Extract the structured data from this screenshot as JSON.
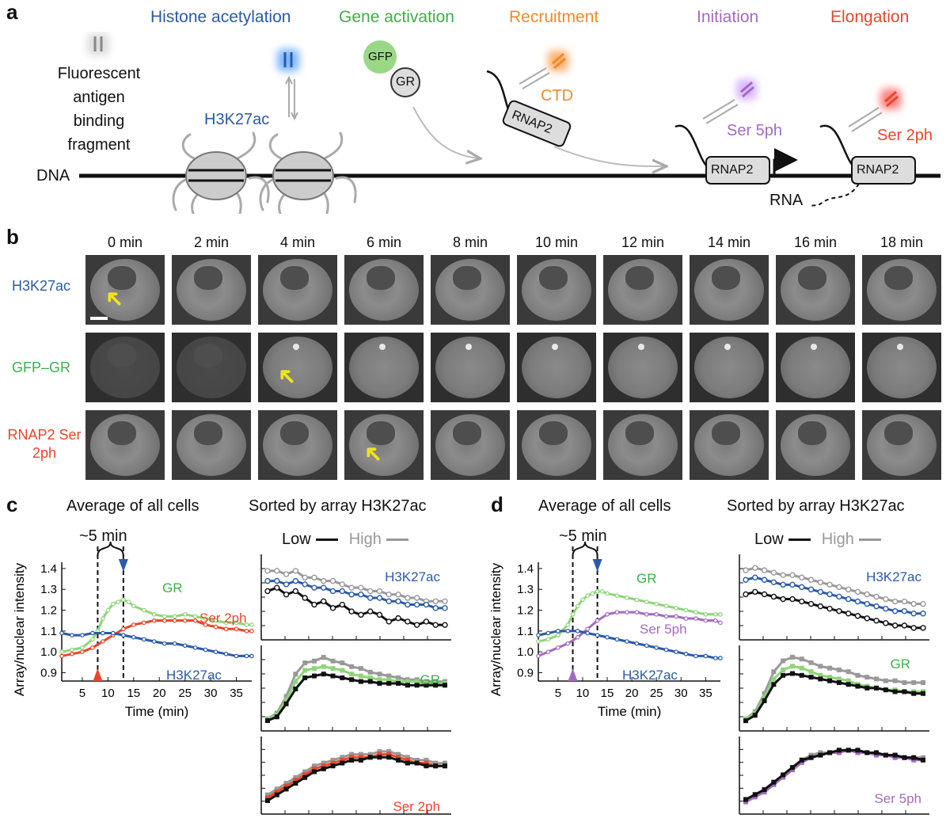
{
  "panel_a": {
    "letter": "a",
    "stages": [
      "Histone acetylation",
      "Gene activation",
      "Recruitment",
      "Initiation",
      "Elongation"
    ],
    "stage_colors": [
      "#2b5aa8",
      "#3dae4a",
      "#f08a2a",
      "#a26bc0",
      "#e8462a"
    ],
    "fab_label": [
      "Fluorescent",
      "antigen",
      "binding",
      "fragment"
    ],
    "h3k27ac": "H3K27ac",
    "gfp": "GFP",
    "gr": "GR",
    "ctd": "CTD",
    "rnap2": "RNAP2",
    "ser5": "Ser 5ph",
    "ser2": "Ser 2ph",
    "dna": "DNA",
    "rna": "RNA"
  },
  "panel_b": {
    "letter": "b",
    "times": [
      "0 min",
      "2 min",
      "4 min",
      "6 min",
      "8 min",
      "10 min",
      "12 min",
      "14 min",
      "16 min",
      "18 min"
    ],
    "rows": [
      {
        "label": "H3K27ac",
        "color": "#2b5aa8"
      },
      {
        "label": "GFP–GR",
        "color": "#3dae4a"
      },
      {
        "label": "RNAP2 Ser 2ph",
        "color": "#e8462a"
      }
    ]
  },
  "panel_c": {
    "letter": "c",
    "title_left": "Average of all cells",
    "title_right": "Sorted by array H3K27ac",
    "delay_label": "~5 min",
    "legend_low": "Low",
    "legend_high": "High"
  },
  "panel_d": {
    "letter": "d",
    "title_left": "Average of all cells",
    "title_right": "Sorted by array H3K27ac",
    "delay_label": "~5 min",
    "legend_low": "Low",
    "legend_high": "High"
  },
  "chart_data": [
    {
      "id": "c-average",
      "type": "line",
      "xlabel": "Time (min)",
      "ylabel": "Array/nuclear intensity",
      "xticks": [
        5,
        10,
        15,
        20,
        25,
        30,
        35
      ],
      "yticks": [
        0.9,
        1.0,
        1.1,
        1.2,
        1.3,
        1.4
      ],
      "xlim": [
        1,
        38
      ],
      "ylim": [
        0.86,
        1.43
      ],
      "markers": {
        "first_response": 8,
        "peak": 13
      },
      "series": [
        {
          "name": "GR",
          "color": "#8fd47a",
          "x": [
            1,
            3,
            5,
            7,
            8,
            9,
            10,
            11,
            12,
            13,
            14,
            15,
            17,
            19,
            21,
            23,
            25,
            27,
            29,
            31,
            33,
            35,
            37,
            38
          ],
          "values": [
            1.0,
            1.01,
            1.02,
            1.06,
            1.1,
            1.16,
            1.2,
            1.23,
            1.24,
            1.25,
            1.24,
            1.22,
            1.2,
            1.18,
            1.17,
            1.17,
            1.18,
            1.17,
            1.16,
            1.15,
            1.14,
            1.14,
            1.13,
            1.13
          ]
        },
        {
          "name": "Ser 2ph",
          "color": "#e8462a",
          "x": [
            1,
            3,
            5,
            7,
            9,
            11,
            13,
            15,
            17,
            19,
            21,
            23,
            25,
            27,
            29,
            31,
            33,
            35,
            37,
            38
          ],
          "values": [
            0.98,
            0.99,
            1.0,
            1.02,
            1.05,
            1.08,
            1.11,
            1.13,
            1.14,
            1.15,
            1.15,
            1.15,
            1.15,
            1.15,
            1.13,
            1.12,
            1.11,
            1.11,
            1.1,
            1.1
          ]
        },
        {
          "name": "H3K27ac",
          "color": "#2b5aa8",
          "x": [
            1,
            3,
            5,
            7,
            9,
            11,
            13,
            15,
            17,
            19,
            21,
            23,
            25,
            27,
            29,
            31,
            33,
            35,
            37,
            38
          ],
          "values": [
            1.09,
            1.08,
            1.08,
            1.09,
            1.09,
            1.09,
            1.08,
            1.07,
            1.06,
            1.05,
            1.04,
            1.04,
            1.03,
            1.02,
            1.01,
            1.0,
            0.99,
            0.98,
            0.98,
            0.98
          ]
        }
      ]
    },
    {
      "id": "c-sorted-h3k27ac",
      "type": "line",
      "label": "H3K27ac",
      "label_color": "#2b5aa8",
      "series": [
        {
          "color": "#999999",
          "values": [
            1.15,
            1.15,
            1.14,
            1.15,
            1.13,
            1.13,
            1.12,
            1.12,
            1.11,
            1.1,
            1.1,
            1.09,
            1.09,
            1.08,
            1.08,
            1.07,
            1.07,
            1.06,
            1.06,
            1.06
          ]
        },
        {
          "color": "#2b5aa8",
          "values": [
            1.12,
            1.12,
            1.11,
            1.12,
            1.11,
            1.1,
            1.1,
            1.09,
            1.09,
            1.08,
            1.08,
            1.07,
            1.07,
            1.06,
            1.06,
            1.05,
            1.05,
            1.05,
            1.04,
            1.04
          ]
        },
        {
          "color": "#111111",
          "values": [
            1.09,
            1.1,
            1.08,
            1.09,
            1.07,
            1.05,
            1.06,
            1.04,
            1.05,
            1.03,
            1.02,
            1.03,
            1.02,
            1.0,
            1.01,
            1.0,
            0.99,
            1.0,
            0.99,
            0.99
          ]
        }
      ]
    },
    {
      "id": "c-sorted-gr",
      "type": "line",
      "label": "GR",
      "label_color": "#3dae4a",
      "series": [
        {
          "color": "#999999",
          "values": [
            1.0,
            1.03,
            1.12,
            1.24,
            1.3,
            1.31,
            1.33,
            1.31,
            1.3,
            1.28,
            1.27,
            1.25,
            1.24,
            1.23,
            1.22,
            1.21,
            1.21,
            1.2,
            1.2,
            1.2
          ]
        },
        {
          "color": "#8fd47a",
          "values": [
            1.0,
            1.02,
            1.1,
            1.2,
            1.26,
            1.27,
            1.28,
            1.27,
            1.26,
            1.24,
            1.23,
            1.22,
            1.21,
            1.21,
            1.2,
            1.2,
            1.2,
            1.19,
            1.19,
            1.19
          ]
        },
        {
          "color": "#111111",
          "values": [
            0.99,
            1.01,
            1.08,
            1.16,
            1.22,
            1.23,
            1.24,
            1.23,
            1.22,
            1.21,
            1.2,
            1.2,
            1.19,
            1.19,
            1.19,
            1.18,
            1.18,
            1.18,
            1.18,
            1.18
          ]
        }
      ]
    },
    {
      "id": "c-sorted-ser2",
      "type": "line",
      "label": "Ser 2ph",
      "label_color": "#e8462a",
      "series": [
        {
          "color": "#999999",
          "values": [
            1.0,
            1.02,
            1.04,
            1.06,
            1.08,
            1.1,
            1.11,
            1.12,
            1.13,
            1.14,
            1.14,
            1.14,
            1.15,
            1.15,
            1.14,
            1.13,
            1.12,
            1.12,
            1.11,
            1.11
          ]
        },
        {
          "color": "#e8462a",
          "values": [
            0.99,
            1.01,
            1.03,
            1.05,
            1.07,
            1.09,
            1.1,
            1.11,
            1.12,
            1.13,
            1.13,
            1.13,
            1.14,
            1.14,
            1.13,
            1.12,
            1.11,
            1.11,
            1.1,
            1.1
          ]
        },
        {
          "color": "#111111",
          "values": [
            0.98,
            1.0,
            1.02,
            1.04,
            1.06,
            1.08,
            1.09,
            1.1,
            1.11,
            1.12,
            1.12,
            1.13,
            1.13,
            1.13,
            1.12,
            1.11,
            1.11,
            1.1,
            1.1,
            1.1
          ]
        }
      ]
    },
    {
      "id": "d-average",
      "type": "line",
      "xlabel": "Time (min)",
      "ylabel": "Array/nuclear intensity",
      "xticks": [
        5,
        10,
        15,
        20,
        25,
        30,
        35
      ],
      "yticks": [
        0.9,
        1.0,
        1.1,
        1.2,
        1.3,
        1.4
      ],
      "xlim": [
        1,
        38
      ],
      "ylim": [
        0.86,
        1.43
      ],
      "markers": {
        "first_response": 8,
        "peak": 13
      },
      "series": [
        {
          "name": "GR",
          "color": "#8fd47a",
          "x": [
            1,
            3,
            5,
            7,
            8,
            9,
            10,
            11,
            12,
            13,
            14,
            15,
            17,
            19,
            21,
            23,
            25,
            27,
            29,
            31,
            33,
            35,
            37,
            38
          ],
          "values": [
            1.05,
            1.06,
            1.08,
            1.13,
            1.18,
            1.22,
            1.25,
            1.27,
            1.28,
            1.29,
            1.29,
            1.28,
            1.27,
            1.26,
            1.25,
            1.24,
            1.23,
            1.22,
            1.21,
            1.2,
            1.19,
            1.18,
            1.18,
            1.18
          ]
        },
        {
          "name": "Ser 5ph",
          "color": "#a26bc0",
          "x": [
            1,
            3,
            5,
            7,
            9,
            11,
            13,
            15,
            17,
            19,
            21,
            23,
            25,
            27,
            29,
            31,
            33,
            35,
            37,
            38
          ],
          "values": [
            0.98,
            1.0,
            1.02,
            1.04,
            1.07,
            1.11,
            1.15,
            1.18,
            1.19,
            1.19,
            1.19,
            1.18,
            1.18,
            1.17,
            1.17,
            1.16,
            1.16,
            1.15,
            1.15,
            1.14
          ]
        },
        {
          "name": "H3K27ac",
          "color": "#2b5aa8",
          "x": [
            1,
            3,
            5,
            7,
            9,
            11,
            13,
            15,
            17,
            19,
            21,
            23,
            25,
            27,
            29,
            31,
            33,
            35,
            37,
            38
          ],
          "values": [
            1.08,
            1.09,
            1.1,
            1.1,
            1.1,
            1.09,
            1.08,
            1.07,
            1.06,
            1.05,
            1.04,
            1.03,
            1.02,
            1.01,
            1.0,
            0.99,
            0.98,
            0.98,
            0.97,
            0.97
          ]
        }
      ]
    },
    {
      "id": "d-sorted-h3k27ac",
      "type": "line",
      "label": "H3K27ac",
      "label_color": "#2b5aa8",
      "series": [
        {
          "color": "#999999",
          "values": [
            1.3,
            1.31,
            1.3,
            1.29,
            1.28,
            1.28,
            1.27,
            1.26,
            1.25,
            1.24,
            1.23,
            1.22,
            1.21,
            1.2,
            1.19,
            1.18,
            1.17,
            1.17,
            1.16,
            1.16
          ]
        },
        {
          "color": "#2b5aa8",
          "values": [
            1.26,
            1.27,
            1.26,
            1.25,
            1.24,
            1.24,
            1.23,
            1.22,
            1.21,
            1.2,
            1.19,
            1.18,
            1.17,
            1.16,
            1.15,
            1.14,
            1.13,
            1.13,
            1.12,
            1.12
          ]
        },
        {
          "color": "#111111",
          "values": [
            1.2,
            1.21,
            1.2,
            1.19,
            1.18,
            1.18,
            1.17,
            1.16,
            1.15,
            1.14,
            1.13,
            1.12,
            1.11,
            1.1,
            1.09,
            1.08,
            1.07,
            1.07,
            1.06,
            1.06
          ]
        }
      ]
    },
    {
      "id": "d-sorted-gr",
      "type": "line",
      "label": "GR",
      "label_color": "#3dae4a",
      "series": [
        {
          "color": "#999999",
          "values": [
            1.0,
            1.04,
            1.14,
            1.26,
            1.32,
            1.34,
            1.33,
            1.31,
            1.29,
            1.28,
            1.27,
            1.26,
            1.24,
            1.23,
            1.22,
            1.21,
            1.21,
            1.2,
            1.2,
            1.2
          ]
        },
        {
          "color": "#8fd47a",
          "values": [
            1.0,
            1.03,
            1.12,
            1.22,
            1.27,
            1.29,
            1.28,
            1.26,
            1.24,
            1.23,
            1.22,
            1.21,
            1.19,
            1.18,
            1.17,
            1.16,
            1.16,
            1.15,
            1.15,
            1.15
          ]
        },
        {
          "color": "#111111",
          "values": [
            0.99,
            1.02,
            1.1,
            1.19,
            1.24,
            1.25,
            1.24,
            1.23,
            1.22,
            1.21,
            1.2,
            1.19,
            1.18,
            1.17,
            1.17,
            1.16,
            1.15,
            1.15,
            1.14,
            1.14
          ]
        }
      ]
    },
    {
      "id": "d-sorted-ser5",
      "type": "line",
      "label": "Ser 5ph",
      "label_color": "#a26bc0",
      "series": [
        {
          "color": "#999999",
          "values": [
            1.0,
            1.02,
            1.04,
            1.07,
            1.1,
            1.13,
            1.16,
            1.18,
            1.19,
            1.19,
            1.2,
            1.2,
            1.2,
            1.19,
            1.19,
            1.18,
            1.18,
            1.17,
            1.17,
            1.17
          ]
        },
        {
          "color": "#a26bc0",
          "values": [
            0.99,
            1.01,
            1.03,
            1.06,
            1.09,
            1.12,
            1.15,
            1.17,
            1.18,
            1.19,
            1.19,
            1.2,
            1.19,
            1.19,
            1.18,
            1.18,
            1.17,
            1.17,
            1.16,
            1.16
          ]
        },
        {
          "color": "#111111",
          "values": [
            1.0,
            1.02,
            1.04,
            1.07,
            1.1,
            1.13,
            1.16,
            1.17,
            1.18,
            1.19,
            1.2,
            1.2,
            1.2,
            1.19,
            1.19,
            1.18,
            1.18,
            1.17,
            1.17,
            1.16
          ]
        }
      ]
    }
  ]
}
